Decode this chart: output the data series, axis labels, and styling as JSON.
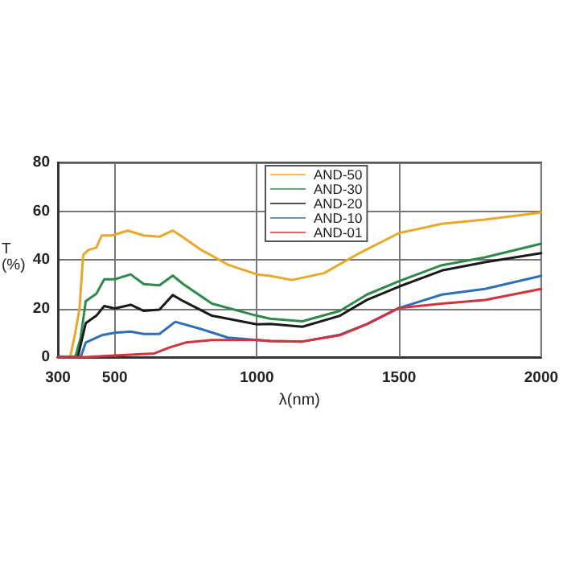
{
  "chart_data": {
    "type": "line",
    "xlabel": "λ(nm)",
    "ylabel": "T\n(%)",
    "xlim": [
      300,
      2000
    ],
    "xticks": [
      300,
      500,
      1000,
      1500,
      2000
    ],
    "ylim": [
      0,
      80
    ],
    "yticks": [
      0,
      20,
      40,
      60,
      80
    ],
    "grid": true,
    "legend": "top right",
    "marker": "none",
    "line_style": "solid",
    "series": [
      {
        "name": "AND-50",
        "color": "#e8a82a",
        "x": [
          300,
          343,
          361,
          376,
          389,
          407,
          435,
          454,
          490,
          546,
          602,
          657,
          704,
          731,
          805,
          898,
          1000,
          1047,
          1123,
          1236,
          1349,
          1500,
          1651,
          1802,
          2000
        ],
        "values": [
          0,
          0,
          10,
          20,
          42,
          44,
          45,
          50,
          50,
          52,
          50,
          49.5,
          52,
          50,
          44,
          38,
          34,
          33.4,
          31.7,
          34.5,
          42,
          51,
          54.8,
          56.5,
          59.4
        ]
      },
      {
        "name": "AND-30",
        "color": "#2e8a4a",
        "x": [
          300,
          361,
          380,
          398,
          435,
          463,
          500,
          556,
          602,
          657,
          704,
          741,
          842,
          1000,
          1047,
          1160,
          1292,
          1387,
          1500,
          1651,
          1802,
          2000
        ],
        "values": [
          0,
          0,
          8,
          23,
          26,
          32,
          32,
          34,
          30,
          29.5,
          33.5,
          30,
          22,
          17,
          15.8,
          14.7,
          19,
          25.7,
          31.2,
          37.8,
          41,
          46.6
        ]
      },
      {
        "name": "AND-20",
        "color": "#1a1a1a",
        "x": [
          300,
          370,
          398,
          435,
          463,
          500,
          556,
          602,
          657,
          704,
          741,
          842,
          1000,
          1047,
          1160,
          1292,
          1387,
          1500,
          1651,
          1802,
          2000
        ],
        "values": [
          0,
          0,
          14,
          17,
          21,
          20,
          21.5,
          19,
          19.5,
          25.5,
          23,
          17,
          13.5,
          13.6,
          12.5,
          17,
          23.5,
          29,
          35.6,
          39,
          42.7
        ]
      },
      {
        "name": "AND-10",
        "color": "#2f6fb5",
        "x": [
          300,
          380,
          398,
          454,
          500,
          556,
          602,
          657,
          713,
          805,
          898,
          1000,
          1047,
          1160,
          1292,
          1387,
          1500,
          1651,
          1802,
          2000
        ],
        "values": [
          0,
          0,
          6,
          9,
          10,
          10.5,
          9.5,
          9.5,
          14.5,
          11.5,
          8,
          7,
          6.6,
          6.4,
          9.2,
          13.6,
          20.2,
          25.7,
          28,
          33.4
        ]
      },
      {
        "name": "AND-01",
        "color": "#d2333a",
        "x": [
          300,
          398,
          472,
          639,
          694,
          750,
          842,
          1000,
          1047,
          1160,
          1292,
          1387,
          1500,
          1651,
          1802,
          2000
        ],
        "values": [
          0,
          0,
          0.5,
          1.5,
          4,
          6,
          7,
          7,
          6.6,
          6.4,
          9,
          13.5,
          20.2,
          22,
          23.5,
          28
        ]
      }
    ]
  }
}
